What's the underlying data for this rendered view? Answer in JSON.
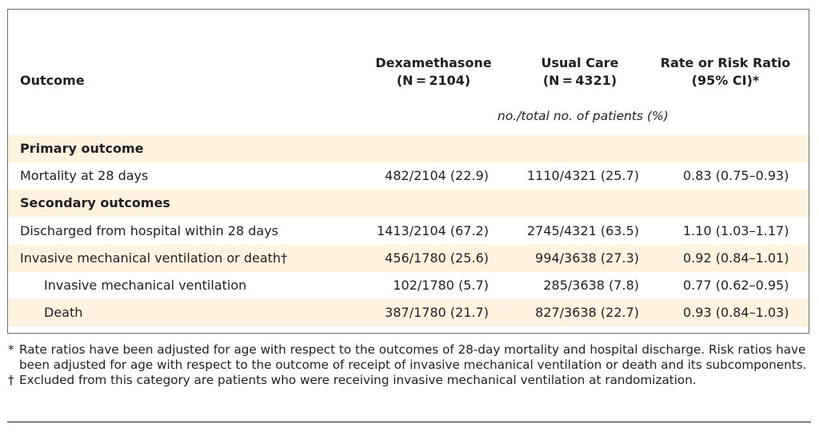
{
  "header": {
    "outcome": "Outcome",
    "dexamethasone": {
      "name": "Dexamethasone",
      "n": "(N = 2104)"
    },
    "usual_care": {
      "name": "Usual Care",
      "n": "(N = 4321)"
    },
    "ratio": {
      "name": "Rate or Risk Ratio",
      "ci": "(95% CI)*"
    },
    "units": "no./total no. of patients (%)"
  },
  "rows": [
    {
      "label": "Primary outcome",
      "kind": "section",
      "shaded": true,
      "dexa": "",
      "usual": "",
      "ratio": ""
    },
    {
      "label": "Mortality at 28 days",
      "kind": "item",
      "shaded": false,
      "dexa": "482/2104 (22.9)",
      "usual": "1110/4321 (25.7)",
      "ratio": "0.83 (0.75–0.93)"
    },
    {
      "label": "Secondary outcomes",
      "kind": "section",
      "shaded": true,
      "dexa": "",
      "usual": "",
      "ratio": ""
    },
    {
      "label": "Discharged from hospital within 28 days",
      "kind": "item",
      "shaded": false,
      "dexa": "1413/2104 (67.2)",
      "usual": "2745/4321 (63.5)",
      "ratio": "1.10 (1.03–1.17)"
    },
    {
      "label": "Invasive mechanical ventilation or death†",
      "kind": "item",
      "shaded": true,
      "dexa": "456/1780 (25.6)",
      "usual": "994/3638 (27.3)",
      "ratio": "0.92 (0.84–1.01)"
    },
    {
      "label": "Invasive mechanical ventilation",
      "kind": "subitem",
      "shaded": false,
      "dexa": "102/1780 (5.7)",
      "usual": "285/3638 (7.8)",
      "ratio": "0.77 (0.62–0.95)"
    },
    {
      "label": "Death",
      "kind": "subitem",
      "shaded": true,
      "dexa": "387/1780 (21.7)",
      "usual": "827/3638 (22.7)",
      "ratio": "0.93 (0.84–1.03)"
    }
  ],
  "footnotes": [
    {
      "mark": "*",
      "text": "Rate ratios have been adjusted for age with respect to the outcomes of 28-day mortality and hospital discharge. Risk ratios have been adjusted for age with respect to the outcome of receipt of invasive mechanical ventilation or death and its subcomponents."
    },
    {
      "mark": "†",
      "text": "Excluded from this category are patients who were receiving invasive mechanical ventilation at randomization."
    }
  ]
}
